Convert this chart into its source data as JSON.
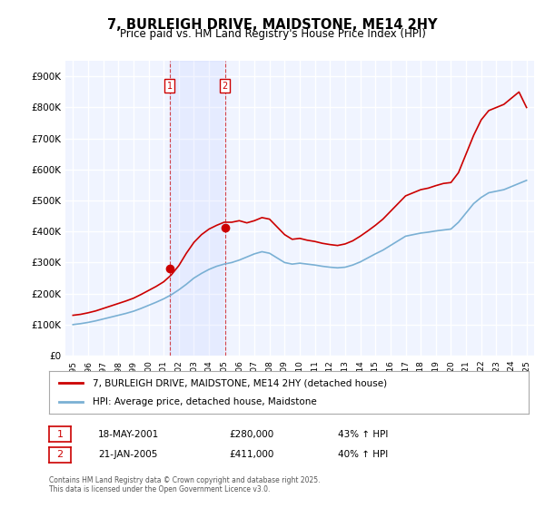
{
  "title": "7, BURLEIGH DRIVE, MAIDSTONE, ME14 2HY",
  "subtitle": "Price paid vs. HM Land Registry's House Price Index (HPI)",
  "ylabel": "",
  "ylim": [
    0,
    950000
  ],
  "yticks": [
    0,
    100000,
    200000,
    300000,
    400000,
    500000,
    600000,
    700000,
    800000,
    900000
  ],
  "ytick_labels": [
    "£0",
    "£100K",
    "£200K",
    "£300K",
    "£400K",
    "£500K",
    "£600K",
    "£700K",
    "£800K",
    "£900K"
  ],
  "background_color": "#ffffff",
  "plot_bg_color": "#f0f4ff",
  "grid_color": "#ffffff",
  "red_line_color": "#cc0000",
  "blue_line_color": "#7ab0d4",
  "purchase1_date_x": 2001.38,
  "purchase1_price": 280000,
  "purchase1_label": "1",
  "purchase2_date_x": 2005.05,
  "purchase2_price": 411000,
  "purchase2_label": "2",
  "legend_red": "7, BURLEIGH DRIVE, MAIDSTONE, ME14 2HY (detached house)",
  "legend_blue": "HPI: Average price, detached house, Maidstone",
  "annotation1": "18-MAY-2001        £280,000        43% ↑ HPI",
  "annotation2": "21-JAN-2005        £411,000        40% ↑ HPI",
  "footer": "Contains HM Land Registry data © Crown copyright and database right 2025.\nThis data is licensed under the Open Government Licence v3.0.",
  "xlim_start": 1994.5,
  "xlim_end": 2025.5
}
